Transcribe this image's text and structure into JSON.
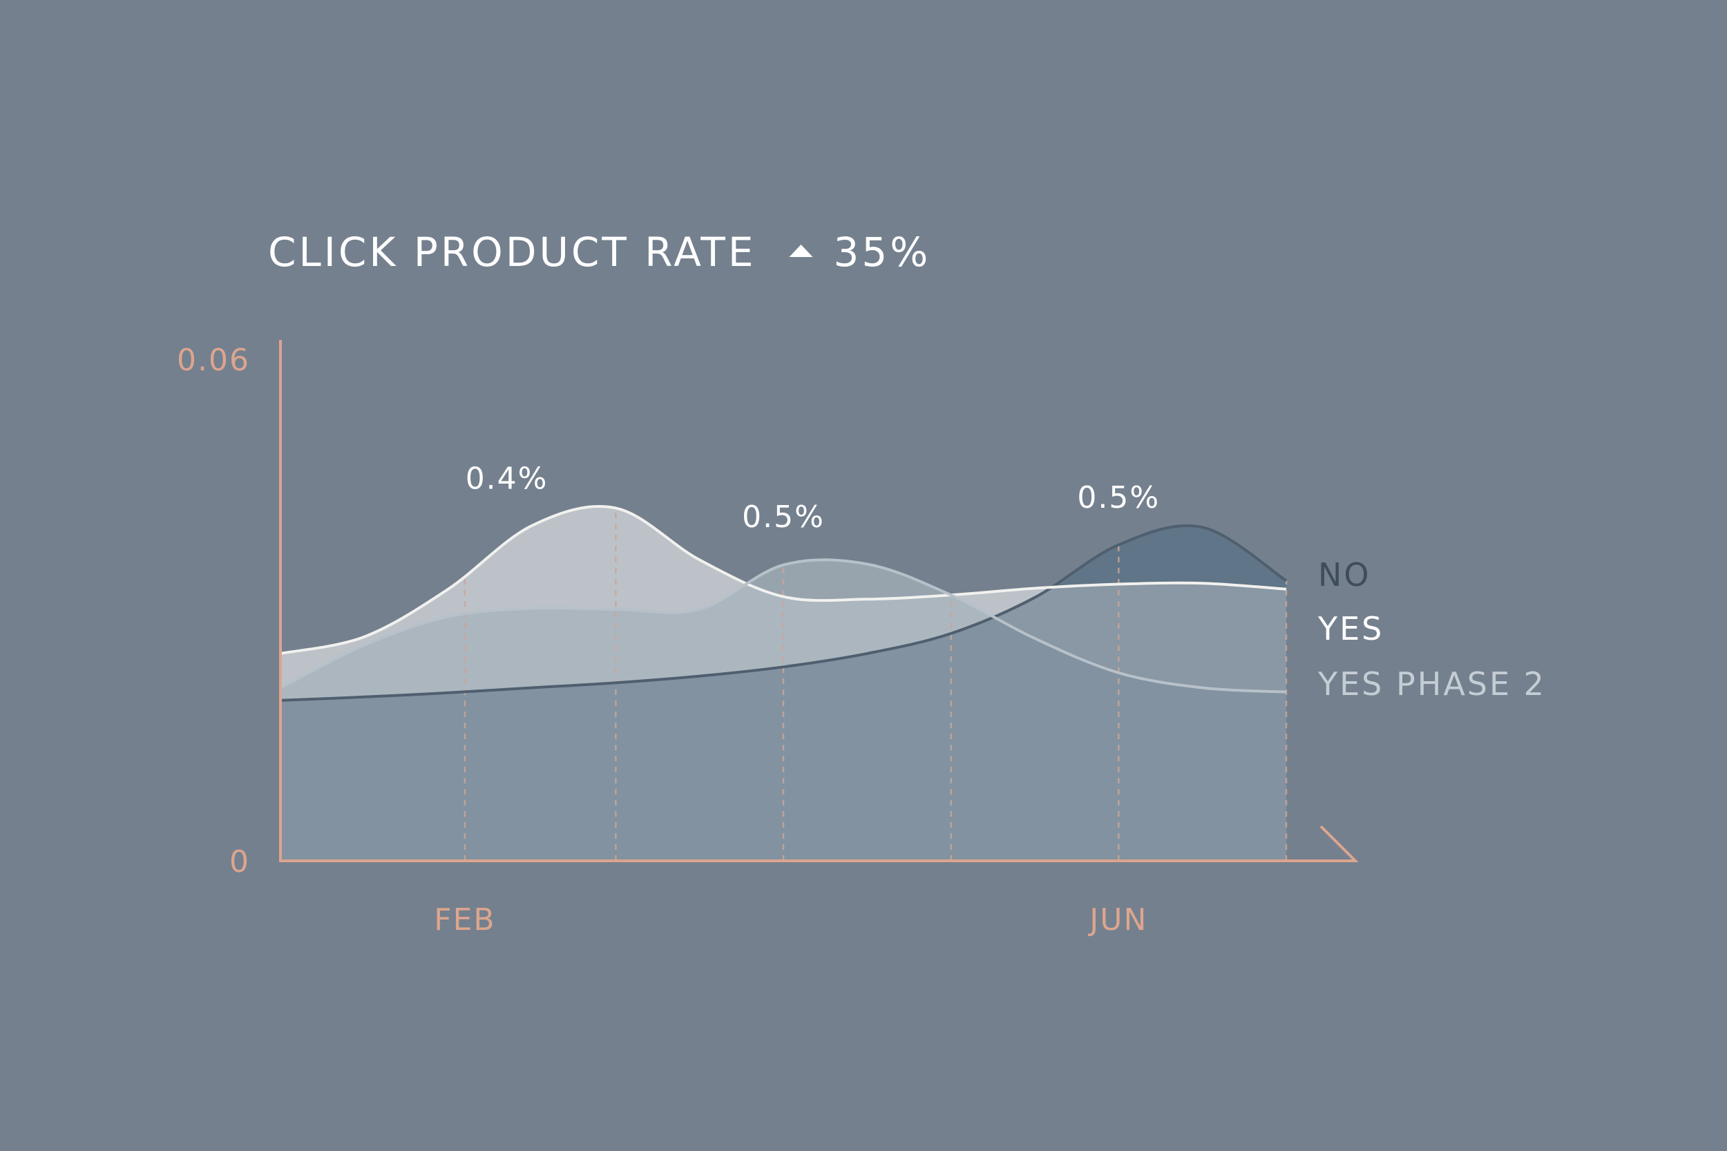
{
  "chart_data": {
    "type": "area",
    "title": "CLICK PRODUCT RATE",
    "change": {
      "direction": "up",
      "label": "35%"
    },
    "ylim": [
      0,
      0.06
    ],
    "y_ticks": [
      "0.06",
      "0"
    ],
    "x": [
      1,
      2,
      3,
      4,
      5,
      6,
      7,
      8,
      9,
      10,
      11,
      12,
      13
    ],
    "x_range": [
      1,
      13
    ],
    "x_ticks": [
      {
        "x": 3.2,
        "label": "FEB"
      },
      {
        "x": 11,
        "label": "JUN"
      }
    ],
    "guide_lines_x": [
      3.2,
      5,
      7,
      9,
      11,
      13
    ],
    "series": [
      {
        "name": "NO",
        "color": "#617587",
        "line_color": "#4f5f6f",
        "values": [
          0.0192,
          0.0196,
          0.0201,
          0.0207,
          0.0213,
          0.0221,
          0.0232,
          0.0248,
          0.0272,
          0.0315,
          0.0378,
          0.0399,
          0.0335
        ]
      },
      {
        "name": "YES",
        "color": "#bcc2c8",
        "line_color": "#f1f1ee",
        "values": [
          0.0248,
          0.0268,
          0.0325,
          0.0401,
          0.0422,
          0.036,
          0.0316,
          0.0313,
          0.0318,
          0.0326,
          0.0331,
          0.0332,
          0.0325
        ]
      },
      {
        "name": "YES PHASE 2",
        "color": "#a5b1bb",
        "line_color": "#b7c1ca",
        "values": [
          0.0207,
          0.0258,
          0.0292,
          0.0302,
          0.0301,
          0.0301,
          0.0354,
          0.0355,
          0.0318,
          0.0266,
          0.0225,
          0.0207,
          0.0202
        ]
      }
    ],
    "annotations": [
      {
        "x": 3.7,
        "value": 0.0422,
        "label": "0.4%"
      },
      {
        "x": 7.0,
        "value": 0.0376,
        "label": "0.5%"
      },
      {
        "x": 11.0,
        "value": 0.0399,
        "label": "0.5%"
      }
    ],
    "legend": {
      "position": "right",
      "items": [
        {
          "label": "NO",
          "color": "#3f4c59"
        },
        {
          "label": "YES",
          "color": "#ffffff"
        },
        {
          "label": "YES PHASE 2",
          "color": "#c5cdd4"
        }
      ]
    },
    "colors": {
      "background": "#74808e",
      "axis": "#dca58e",
      "guide": "#c9a69a"
    },
    "grid": false
  }
}
